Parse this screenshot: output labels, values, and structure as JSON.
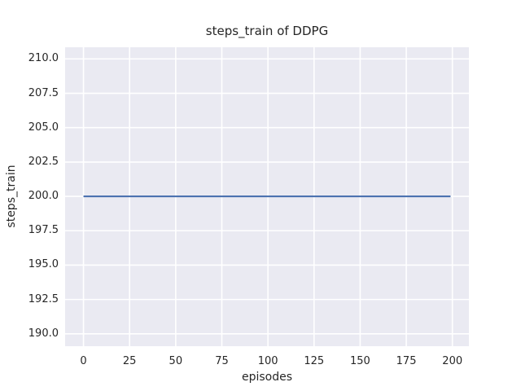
{
  "chart_data": {
    "type": "line",
    "title": "steps_train of DDPG",
    "xlabel": "episodes",
    "ylabel": "steps_train",
    "xlim": [
      -9.95,
      208.95
    ],
    "ylim": [
      189.1,
      210.85
    ],
    "xticks": [
      0,
      25,
      50,
      75,
      100,
      125,
      150,
      175,
      200
    ],
    "xtick_labels": [
      "0",
      "25",
      "50",
      "75",
      "100",
      "125",
      "150",
      "175",
      "200"
    ],
    "yticks": [
      190.0,
      192.5,
      195.0,
      197.5,
      200.0,
      202.5,
      205.0,
      207.5,
      210.0
    ],
    "ytick_labels": [
      "190.0",
      "192.5",
      "195.0",
      "197.5",
      "200.0",
      "202.5",
      "205.0",
      "207.5",
      "210.0"
    ],
    "grid": true,
    "legend": false,
    "plot_background_color": "#eaeaf2",
    "grid_color": "#ffffff",
    "text_color": "#262626",
    "figure_background_color": "#ffffff",
    "series": [
      {
        "name": "steps_train",
        "color": "#4c72b0",
        "x": [
          0,
          199
        ],
        "y": [
          200,
          200
        ],
        "constant_value": 200
      }
    ]
  }
}
